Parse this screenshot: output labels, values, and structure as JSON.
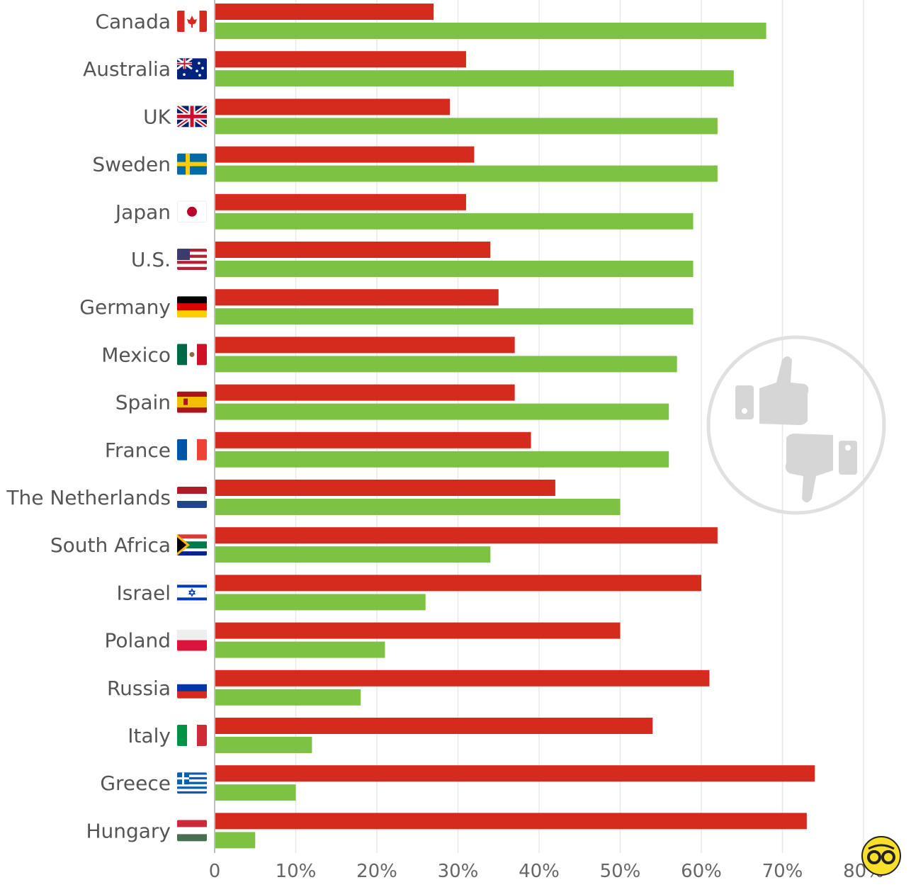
{
  "chart_data": {
    "type": "bar",
    "orientation": "horizontal",
    "title": "",
    "xlabel": "",
    "ylabel": "",
    "xlim": [
      0,
      80
    ],
    "x_ticks": [
      "0",
      "10%",
      "20%",
      "30%",
      "40%",
      "50%",
      "60%",
      "70%",
      "80%"
    ],
    "grid": true,
    "legend": "none",
    "categories": [
      "Canada",
      "Australia",
      "UK",
      "Sweden",
      "Japan",
      "U.S.",
      "Germany",
      "Mexico",
      "Spain",
      "France",
      "The Netherlands",
      "South Africa",
      "Israel",
      "Poland",
      "Russia",
      "Italy",
      "Greece",
      "Hungary"
    ],
    "flags": [
      "flag-canada",
      "flag-australia",
      "flag-uk",
      "flag-sweden",
      "flag-japan",
      "flag-us",
      "flag-germany",
      "flag-mexico",
      "flag-spain",
      "flag-france",
      "flag-netherlands",
      "flag-south-africa",
      "flag-israel",
      "flag-poland",
      "flag-russia",
      "flag-italy",
      "flag-greece",
      "flag-hungary"
    ],
    "series": [
      {
        "color": "#d52b1e",
        "values": [
          27,
          31,
          29,
          32,
          31,
          34,
          35,
          37,
          37,
          39,
          42,
          62,
          60,
          50,
          61,
          54,
          74,
          73
        ]
      },
      {
        "color": "#7dc242",
        "values": [
          68,
          64,
          62,
          62,
          59,
          59,
          59,
          57,
          56,
          56,
          50,
          34,
          26,
          21,
          18,
          12,
          10,
          5
        ]
      }
    ],
    "watermark_icon": "thumbs-up-down-icon",
    "corner_icon": "brand-logo-icon"
  }
}
